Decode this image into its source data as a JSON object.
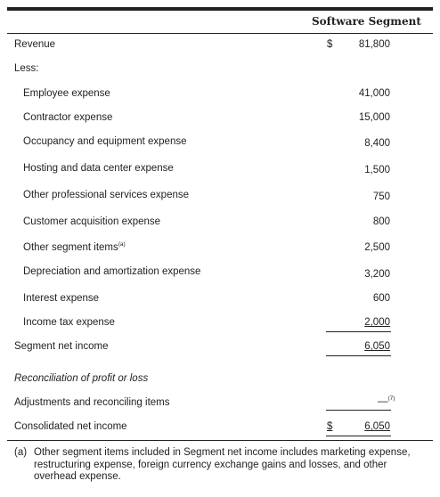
{
  "header": {
    "column": "Software Segment"
  },
  "revenue": {
    "label": "Revenue",
    "currency": "$",
    "value": "81,800"
  },
  "less_label": "Less:",
  "expenses": [
    {
      "label": "Employee expense",
      "value": "41,000"
    },
    {
      "label": "Contractor expense",
      "value": "15,000"
    },
    {
      "label": "Occupancy and equipment expense",
      "value": "8,400"
    },
    {
      "label": "Hosting and data center expense",
      "value": "1,500"
    },
    {
      "label": "Other professional services expense",
      "value": "750"
    },
    {
      "label": "Customer acquisition expense",
      "value": "800"
    },
    {
      "label": "Other segment items",
      "sup": "(a)",
      "value": "2,500"
    },
    {
      "label": "Depreciation and amortization expense",
      "value": "3,200"
    },
    {
      "label": "Interest expense",
      "value": "600"
    },
    {
      "label": "Income tax expense",
      "value": "2,000"
    }
  ],
  "segment_net_income": {
    "label": "Segment net income",
    "value": "6,050"
  },
  "reconciliation": {
    "heading": "Reconciliation of profit or loss",
    "adjustments_label": "Adjustments and reconciling items",
    "adjustments_value": "—",
    "adjustments_sup": "(7)",
    "consolidated_label": "Consolidated net income",
    "consolidated_currency": "$",
    "consolidated_value": "6,050"
  },
  "footnote": {
    "marker": "(a)",
    "text": "Other segment items included in Segment net income includes marketing expense, restructuring expense, foreign currency exchange gains and losses, and other overhead expense."
  }
}
